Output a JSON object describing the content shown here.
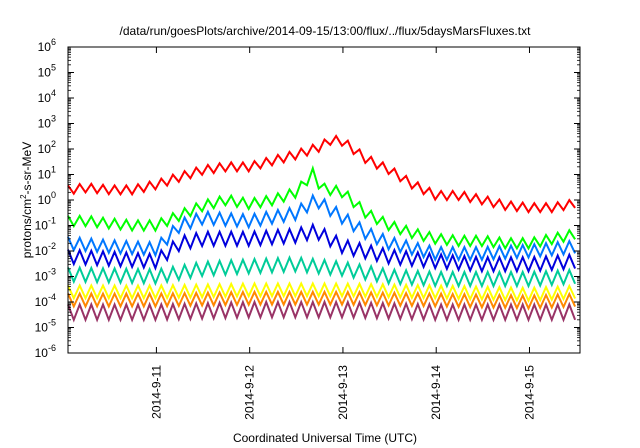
{
  "chart_data": {
    "type": "line",
    "title": "/data/run/goesPlots/archive/2014-09-15/13:00/flux/../flux/5daysMarsFluxes.txt",
    "xlabel": "Coordinated Universal Time (UTC)",
    "ylabel": {
      "prefix": "protons/cm",
      "sup": "2",
      "suffix": "-s-sr-MeV"
    },
    "yscale": "log",
    "ylim": [
      1e-06,
      1000000.0
    ],
    "yticks": [
      {
        "base": "10",
        "exp": "-6",
        "value": 1e-06
      },
      {
        "base": "10",
        "exp": "-5",
        "value": 1e-05
      },
      {
        "base": "10",
        "exp": "-4",
        "value": 0.0001
      },
      {
        "base": "10",
        "exp": "-3",
        "value": 0.001
      },
      {
        "base": "10",
        "exp": "-2",
        "value": 0.01
      },
      {
        "base": "10",
        "exp": "-1",
        "value": 0.1
      },
      {
        "base": "10",
        "exp": "0",
        "value": 1
      },
      {
        "base": "10",
        "exp": "1",
        "value": 10
      },
      {
        "base": "10",
        "exp": "2",
        "value": 100
      },
      {
        "base": "10",
        "exp": "3",
        "value": 1000
      },
      {
        "base": "10",
        "exp": "4",
        "value": 10000
      },
      {
        "base": "10",
        "exp": "5",
        "value": 100000
      },
      {
        "base": "10",
        "exp": "6",
        "value": 1000000
      }
    ],
    "xlim": [
      "2014-09-10 01:15",
      "2014-09-15 13:00"
    ],
    "xticks": [
      {
        "label": "2014-9-11",
        "value": "2014-09-11 00:00"
      },
      {
        "label": "2014-9-12",
        "value": "2014-09-12 00:00"
      },
      {
        "label": "2014-9-13",
        "value": "2014-09-13 00:00"
      },
      {
        "label": "2014-9-14",
        "value": "2014-09-14 00:00"
      },
      {
        "label": "2014-9-15",
        "value": "2014-09-15 00:00"
      }
    ],
    "grid": false,
    "legend": "none",
    "series": [
      {
        "color": "#ff0000",
        "x": [
          "2014-09-10 01:15",
          "2014-09-10 06:00",
          "2014-09-10 12:00",
          "2014-09-10 18:00",
          "2014-09-11 00:00",
          "2014-09-11 06:00",
          "2014-09-11 12:00",
          "2014-09-11 18:00",
          "2014-09-12 00:00",
          "2014-09-12 06:00",
          "2014-09-12 12:00",
          "2014-09-12 18:00",
          "2014-09-12 21:00",
          "2014-09-13 00:00",
          "2014-09-13 06:00",
          "2014-09-13 12:00",
          "2014-09-13 18:00",
          "2014-09-14 00:00",
          "2014-09-14 06:00",
          "2014-09-14 12:00",
          "2014-09-14 18:00",
          "2014-09-15 00:00",
          "2014-09-15 06:00",
          "2014-09-15 13:00"
        ],
        "y": [
          2.5,
          3,
          2.5,
          2.5,
          4,
          8,
          15,
          20,
          20,
          35,
          60,
          120,
          230,
          200,
          40,
          15,
          4,
          1.5,
          1.5,
          1.0,
          0.6,
          0.5,
          0.5,
          0.8
        ]
      },
      {
        "color": "#00ff00",
        "x": [
          "2014-09-10 01:15",
          "2014-09-10 06:00",
          "2014-09-10 12:00",
          "2014-09-10 18:00",
          "2014-09-11 00:00",
          "2014-09-11 06:00",
          "2014-09-11 12:00",
          "2014-09-11 18:00",
          "2014-09-12 00:00",
          "2014-09-12 06:00",
          "2014-09-12 12:00",
          "2014-09-12 18:00",
          "2014-09-12 17:00",
          "2014-09-13 00:00",
          "2014-09-13 06:00",
          "2014-09-13 12:00",
          "2014-09-13 18:00",
          "2014-09-14 00:00",
          "2014-09-14 06:00",
          "2014-09-14 12:00",
          "2014-09-14 18:00",
          "2014-09-15 00:00",
          "2014-09-15 06:00",
          "2014-09-15 13:00"
        ],
        "y": [
          0.15,
          0.15,
          0.12,
          0.1,
          0.1,
          0.25,
          0.6,
          1.0,
          0.7,
          1.0,
          2.0,
          3.0,
          15,
          2.0,
          0.3,
          0.1,
          0.05,
          0.03,
          0.025,
          0.025,
          0.02,
          0.02,
          0.03,
          0.05
        ]
      },
      {
        "color": "#0077ff",
        "x": [
          "2014-09-10 01:15",
          "2014-09-10 12:00",
          "2014-09-11 00:00",
          "2014-09-11 06:00",
          "2014-09-11 12:00",
          "2014-09-12 00:00",
          "2014-09-12 12:00",
          "2014-09-12 17:00",
          "2014-09-13 00:00",
          "2014-09-13 06:00",
          "2014-09-13 12:00",
          "2014-09-14 00:00",
          "2014-09-14 12:00",
          "2014-09-15 00:00",
          "2014-09-15 13:00"
        ],
        "y": [
          0.02,
          0.015,
          0.012,
          0.1,
          0.2,
          0.15,
          0.3,
          1.0,
          0.2,
          0.05,
          0.02,
          0.008,
          0.008,
          0.01,
          0.015
        ]
      },
      {
        "color": "#0000dd",
        "x": [
          "2014-09-10 01:15",
          "2014-09-10 12:00",
          "2014-09-11 00:00",
          "2014-09-11 06:00",
          "2014-09-11 12:00",
          "2014-09-12 00:00",
          "2014-09-12 12:00",
          "2014-09-12 17:00",
          "2014-09-13 00:00",
          "2014-09-13 12:00",
          "2014-09-14 00:00",
          "2014-09-14 12:00",
          "2014-09-15 00:00",
          "2014-09-15 13:00"
        ],
        "y": [
          0.006,
          0.005,
          0.004,
          0.02,
          0.03,
          0.03,
          0.04,
          0.06,
          0.015,
          0.006,
          0.004,
          0.003,
          0.003,
          0.004
        ]
      },
      {
        "color": "#00cc99",
        "x": [
          "2014-09-10 01:15",
          "2014-09-11 00:00",
          "2014-09-11 12:00",
          "2014-09-12 00:00",
          "2014-09-12 12:00",
          "2014-09-13 00:00",
          "2014-09-13 12:00",
          "2014-09-14 00:00",
          "2014-09-15 00:00",
          "2014-09-15 13:00"
        ],
        "y": [
          0.0012,
          0.001,
          0.002,
          0.0025,
          0.003,
          0.002,
          0.001,
          0.0008,
          0.0008,
          0.001
        ]
      },
      {
        "color": "#ffff00",
        "x": [
          "2014-09-10 01:15",
          "2014-09-11 00:00",
          "2014-09-12 00:00",
          "2014-09-13 00:00",
          "2014-09-14 00:00",
          "2014-09-15 00:00",
          "2014-09-15 13:00"
        ],
        "y": [
          0.00025,
          0.00025,
          0.0003,
          0.0003,
          0.00025,
          0.0002,
          0.00025
        ]
      },
      {
        "color": "#ff8800",
        "x": [
          "2014-09-10 01:15",
          "2014-09-11 00:00",
          "2014-09-12 00:00",
          "2014-09-13 00:00",
          "2014-09-14 00:00",
          "2014-09-15 00:00",
          "2014-09-15 13:00"
        ],
        "y": [
          0.00012,
          0.00012,
          0.00014,
          0.00014,
          0.00012,
          0.0001,
          0.00012
        ]
      },
      {
        "color": "#993366",
        "x": [
          "2014-09-10 01:15",
          "2014-09-11 00:00",
          "2014-09-12 00:00",
          "2014-09-13 00:00",
          "2014-09-14 00:00",
          "2014-09-15 00:00",
          "2014-09-15 13:00"
        ],
        "y": [
          4e-05,
          4e-05,
          5e-05,
          5e-05,
          4e-05,
          4e-05,
          4e-05
        ]
      }
    ]
  }
}
